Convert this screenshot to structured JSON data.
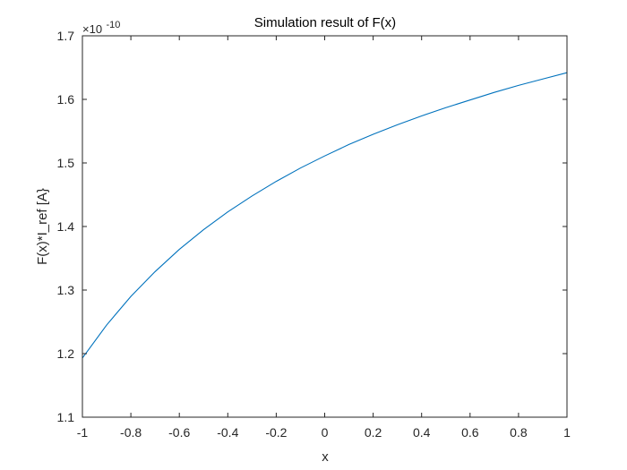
{
  "chart_data": {
    "type": "line",
    "title": "Simulation result of F(x)",
    "xlabel": "x",
    "ylabel": "F(x)*I_ref [A}",
    "y_exponent_base": "×10",
    "y_exponent_power": "-10",
    "xlim": [
      -1,
      1
    ],
    "ylim": [
      1.1,
      1.7
    ],
    "x_ticks": [
      -1,
      -0.8,
      -0.6,
      -0.4,
      -0.2,
      0,
      0.2,
      0.4,
      0.6,
      0.8,
      1
    ],
    "x_tick_labels": [
      "-1",
      "-0.8",
      "-0.6",
      "-0.4",
      "-0.2",
      "0",
      "0.2",
      "0.4",
      "0.6",
      "0.8",
      "1"
    ],
    "y_ticks": [
      1.1,
      1.2,
      1.3,
      1.4,
      1.5,
      1.6,
      1.7
    ],
    "y_tick_labels": [
      "1.1",
      "1.2",
      "1.3",
      "1.4",
      "1.5",
      "1.6",
      "1.7"
    ],
    "grid": false,
    "box": true,
    "series": [
      {
        "color": "#0072BD",
        "x": [
          -1,
          -0.9,
          -0.8,
          -0.7,
          -0.6,
          -0.5,
          -0.4,
          -0.3,
          -0.2,
          -0.1,
          0,
          0.1,
          0.2,
          0.3,
          0.4,
          0.5,
          0.6,
          0.7,
          0.8,
          0.9,
          1
        ],
        "y": [
          1.193,
          1.245,
          1.29,
          1.329,
          1.364,
          1.395,
          1.423,
          1.448,
          1.471,
          1.492,
          1.511,
          1.529,
          1.545,
          1.56,
          1.574,
          1.587,
          1.599,
          1.611,
          1.622,
          1.632,
          1.642
        ]
      }
    ]
  }
}
